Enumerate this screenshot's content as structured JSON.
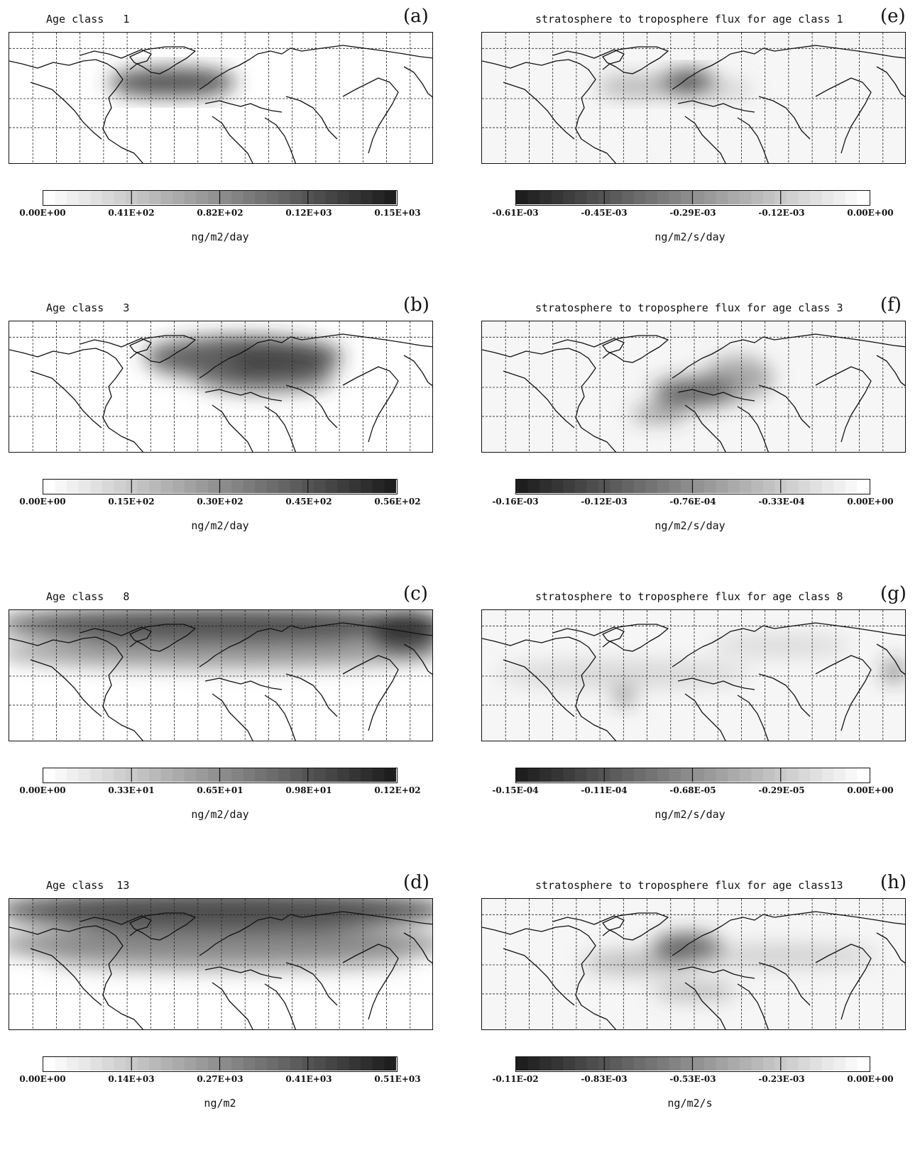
{
  "panels": [
    {
      "id": "a",
      "label": "(a)",
      "title": "Age class   1",
      "ticks": [
        "0.00E+00",
        "0.41E+02",
        "0.82E+02",
        "0.12E+03",
        "0.15E+03"
      ],
      "unit": "ng/m2/day",
      "scale": "positive"
    },
    {
      "id": "b",
      "label": "(b)",
      "title": "Age class   3",
      "ticks": [
        "0.00E+00",
        "0.15E+02",
        "0.30E+02",
        "0.45E+02",
        "0.56E+02"
      ],
      "unit": "ng/m2/day",
      "scale": "positive"
    },
    {
      "id": "c",
      "label": "(c)",
      "title": "Age class   8",
      "ticks": [
        "0.00E+00",
        "0.33E+01",
        "0.65E+01",
        "0.98E+01",
        "0.12E+02"
      ],
      "unit": "ng/m2/day",
      "scale": "positive"
    },
    {
      "id": "d",
      "label": "(d)",
      "title": "Age class  13",
      "ticks": [
        "0.00E+00",
        "0.14E+03",
        "0.27E+03",
        "0.41E+03",
        "0.51E+03"
      ],
      "unit": "ng/m2",
      "scale": "positive"
    },
    {
      "id": "e",
      "label": "(e)",
      "title": "stratosphere to troposphere flux for age class 1",
      "ticks": [
        "-0.61E-03",
        "-0.45E-03",
        "-0.29E-03",
        "-0.12E-03",
        "0.00E+00"
      ],
      "unit": "ng/m2/s/day",
      "scale": "negative"
    },
    {
      "id": "f",
      "label": "(f)",
      "title": "stratosphere to troposphere flux for age class 3",
      "ticks": [
        "-0.16E-03",
        "-0.12E-03",
        "-0.76E-04",
        "-0.33E-04",
        "0.00E+00"
      ],
      "unit": "ng/m2/s/day",
      "scale": "negative"
    },
    {
      "id": "g",
      "label": "(g)",
      "title": "stratosphere to troposphere flux for age class 8",
      "ticks": [
        "-0.15E-04",
        "-0.11E-04",
        "-0.68E-05",
        "-0.29E-05",
        "0.00E+00"
      ],
      "unit": "ng/m2/s/day",
      "scale": "negative"
    },
    {
      "id": "h",
      "label": "(h)",
      "title": "stratosphere to troposphere flux for age class13",
      "ticks": [
        "-0.11E-02",
        "-0.83E-03",
        "-0.53E-03",
        "-0.23E-03",
        "0.00E+00"
      ],
      "unit": "ng/m2/s",
      "scale": "negative"
    }
  ],
  "colorbar": {
    "light": "#ffffff",
    "dark": "#1e1e1e",
    "segments": 30
  }
}
